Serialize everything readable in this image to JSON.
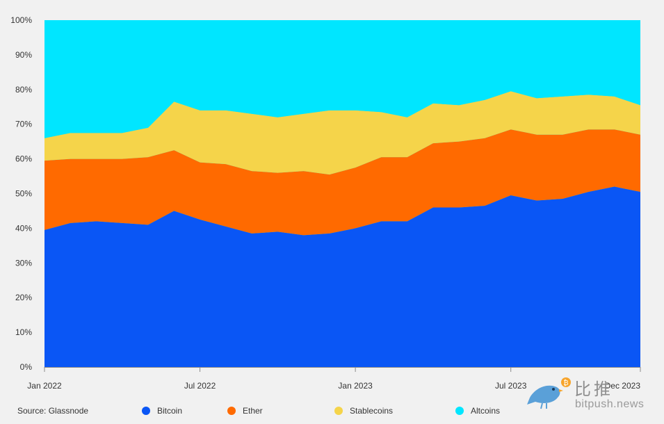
{
  "chart_data": {
    "type": "area",
    "stacked": "percent",
    "x": [
      "Jan 2022",
      "Feb 2022",
      "Mar 2022",
      "Apr 2022",
      "May 2022",
      "Jun 2022",
      "Jul 2022",
      "Aug 2022",
      "Sep 2022",
      "Oct 2022",
      "Nov 2022",
      "Dec 2022",
      "Jan 2023",
      "Feb 2023",
      "Mar 2023",
      "Apr 2023",
      "May 2023",
      "Jun 2023",
      "Jul 2023",
      "Aug 2023",
      "Sep 2023",
      "Oct 2023",
      "Nov 2023",
      "Dec 2023"
    ],
    "x_ticks": [
      "Jan 2022",
      "Jul 2022",
      "Jan 2023",
      "Jul 2023",
      "Dec 2023"
    ],
    "y_ticks": [
      "0%",
      "10%",
      "20%",
      "30%",
      "40%",
      "50%",
      "60%",
      "70%",
      "80%",
      "90%",
      "100%"
    ],
    "ylim": [
      0,
      100
    ],
    "series": [
      {
        "name": "Bitcoin",
        "color": "#0a56f5",
        "values": [
          39.5,
          41.5,
          42.0,
          41.5,
          41.0,
          45.0,
          42.5,
          40.5,
          38.5,
          39.0,
          38.0,
          38.5,
          40.0,
          42.0,
          42.0,
          46.0,
          46.0,
          46.5,
          49.5,
          48.0,
          48.5,
          50.5,
          52.0,
          50.5
        ]
      },
      {
        "name": "Ether",
        "color": "#ff6a00",
        "values": [
          20.0,
          18.5,
          18.0,
          18.5,
          19.5,
          17.5,
          16.5,
          18.0,
          18.0,
          17.0,
          18.5,
          17.0,
          17.5,
          18.5,
          18.5,
          18.5,
          19.0,
          19.5,
          19.0,
          19.0,
          18.5,
          18.0,
          16.5,
          16.5
        ]
      },
      {
        "name": "Stablecoins",
        "color": "#f5d44a",
        "values": [
          6.5,
          7.5,
          7.5,
          7.5,
          8.5,
          14.0,
          15.0,
          15.5,
          16.5,
          16.0,
          16.5,
          18.5,
          16.5,
          13.0,
          11.5,
          11.5,
          10.5,
          11.0,
          11.0,
          10.5,
          11.0,
          10.0,
          9.5,
          8.5
        ]
      },
      {
        "name": "Altcoins",
        "color": "#00e6ff",
        "values": [
          34.0,
          32.5,
          32.5,
          32.5,
          31.0,
          23.5,
          26.0,
          26.0,
          27.0,
          28.0,
          27.0,
          26.0,
          26.0,
          26.5,
          28.0,
          24.0,
          24.5,
          23.0,
          20.5,
          22.5,
          22.0,
          21.5,
          22.0,
          24.5
        ]
      }
    ]
  },
  "footer": {
    "source": "Source: Glassnode"
  },
  "watermark": {
    "title": "比推",
    "url": "bitpush.news",
    "badge": "₿",
    "bird_color": "#5aa0d8",
    "badge_color": "#f7a42b"
  }
}
